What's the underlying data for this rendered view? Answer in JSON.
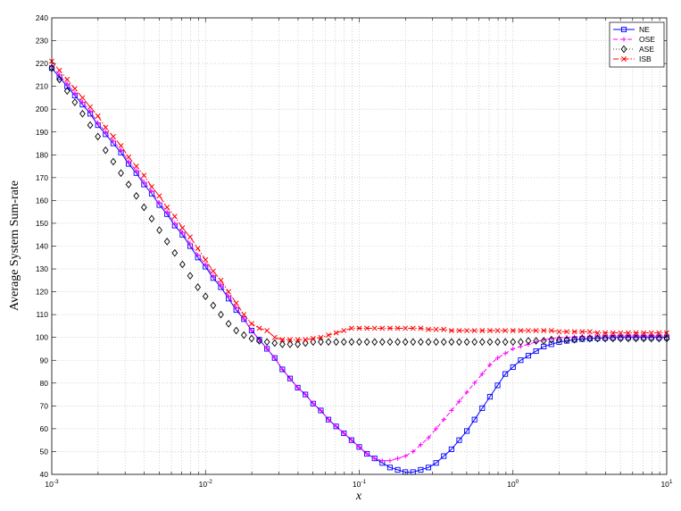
{
  "chart_data": {
    "type": "line",
    "title": "",
    "xlabel": "x",
    "ylabel": "Average System Sum-rate",
    "xscale": "log",
    "xlim": [
      0.001,
      10
    ],
    "ylim": [
      40,
      240
    ],
    "grid": true,
    "legend_position": "top-right",
    "x_ticks": [
      {
        "value": 0.001,
        "base": "10",
        "exp": "-3"
      },
      {
        "value": 0.01,
        "base": "10",
        "exp": "-2"
      },
      {
        "value": 0.1,
        "base": "10",
        "exp": "-1"
      },
      {
        "value": 1,
        "base": "10",
        "exp": "0"
      },
      {
        "value": 10,
        "base": "10",
        "exp": "1"
      }
    ],
    "y_ticks": [
      40,
      50,
      60,
      70,
      80,
      90,
      100,
      110,
      120,
      130,
      140,
      150,
      160,
      170,
      180,
      190,
      200,
      210,
      220,
      230,
      240
    ],
    "series": [
      {
        "name": "NE",
        "color": "#0000ff",
        "line_style": "solid",
        "marker": "square",
        "x_start": 0.001,
        "x_end": 10,
        "n_points": 81,
        "y": [
          218,
          214,
          210,
          206,
          202,
          198,
          193,
          189,
          185,
          181,
          176,
          172,
          167,
          163,
          158,
          154,
          149,
          145,
          140,
          135,
          131,
          126,
          122,
          117,
          112,
          108,
          103,
          99,
          95,
          91,
          86,
          82,
          78,
          75,
          71,
          68,
          64,
          61,
          58,
          55,
          52,
          49,
          47,
          45,
          43,
          42,
          41,
          41,
          42,
          43,
          45,
          48,
          51,
          55,
          59,
          64,
          69,
          74,
          79,
          84,
          87,
          90,
          92,
          94,
          96,
          97,
          98,
          98.5,
          99,
          99.3,
          99.5,
          99.7,
          99.8,
          99.9,
          100,
          100,
          100,
          100,
          100,
          100,
          100
        ]
      },
      {
        "name": "OSE",
        "color": "#ff00ff",
        "line_style": "dashed",
        "marker": "plus",
        "x_start": 0.001,
        "x_end": 10,
        "n_points": 81,
        "y": [
          219,
          215,
          211,
          207,
          203,
          199,
          194,
          190,
          186,
          182,
          177,
          173,
          168,
          164,
          159,
          155,
          150,
          146,
          141,
          136,
          132,
          127,
          123,
          118,
          113,
          108,
          103,
          99,
          95,
          91,
          86,
          82,
          78,
          75,
          71,
          68,
          64,
          61,
          58,
          55,
          52,
          49,
          47,
          46,
          46,
          47,
          48,
          50,
          53,
          56,
          60,
          64,
          68,
          72,
          76,
          80,
          84,
          88,
          91,
          93,
          95,
          96,
          97,
          98,
          99,
          99.5,
          100,
          100,
          100.3,
          100.5,
          100.6,
          100.6,
          100.6,
          100.6,
          100.6,
          100.6,
          100.6,
          100.6,
          100.6,
          100.6,
          100.6
        ]
      },
      {
        "name": "ASE",
        "color": "#000000",
        "line_style": "none",
        "marker": "diamond",
        "x_start": 0.001,
        "x_end": 10,
        "n_points": 81,
        "y": [
          218,
          213,
          208,
          203,
          198,
          193,
          188,
          182,
          177,
          172,
          167,
          162,
          157,
          152,
          147,
          142,
          137,
          132,
          127,
          122,
          118,
          114,
          110,
          106,
          103,
          101,
          99.5,
          98.5,
          98,
          97.5,
          97,
          97,
          97,
          97.5,
          98,
          98,
          98,
          98,
          98,
          98,
          98,
          98,
          98,
          98,
          98,
          98,
          98,
          98,
          98,
          98,
          98,
          98,
          98,
          98,
          98,
          98,
          98,
          98,
          98,
          98,
          98,
          98,
          98.5,
          98.5,
          98.5,
          99,
          99,
          99,
          99,
          99.5,
          99.5,
          99.5,
          99.5,
          99.5,
          99.5,
          99.5,
          99.5,
          99.5,
          99.5,
          99.5,
          99.5
        ]
      },
      {
        "name": "ISB",
        "color": "#ff0000",
        "line_style": "dashdot",
        "marker": "x",
        "x_start": 0.001,
        "x_end": 10,
        "n_points": 81,
        "y": [
          221,
          217,
          213,
          209,
          205,
          201,
          197,
          192,
          188,
          184,
          179,
          175,
          171,
          166,
          162,
          157,
          153,
          148,
          144,
          139,
          134,
          129,
          125,
          120,
          115,
          110,
          106,
          104,
          103,
          100,
          99,
          99,
          99,
          99,
          99.5,
          100,
          101,
          102,
          103,
          104,
          104,
          104,
          104,
          104,
          104,
          104,
          104,
          104,
          104,
          103.5,
          103.5,
          103.5,
          103,
          103,
          103,
          103,
          103,
          103,
          103,
          103,
          103,
          103,
          103,
          103,
          103,
          103,
          102.5,
          102.5,
          102.5,
          102.5,
          102.5,
          102,
          102,
          102,
          102,
          102,
          102,
          102,
          102,
          102,
          102
        ]
      }
    ]
  }
}
